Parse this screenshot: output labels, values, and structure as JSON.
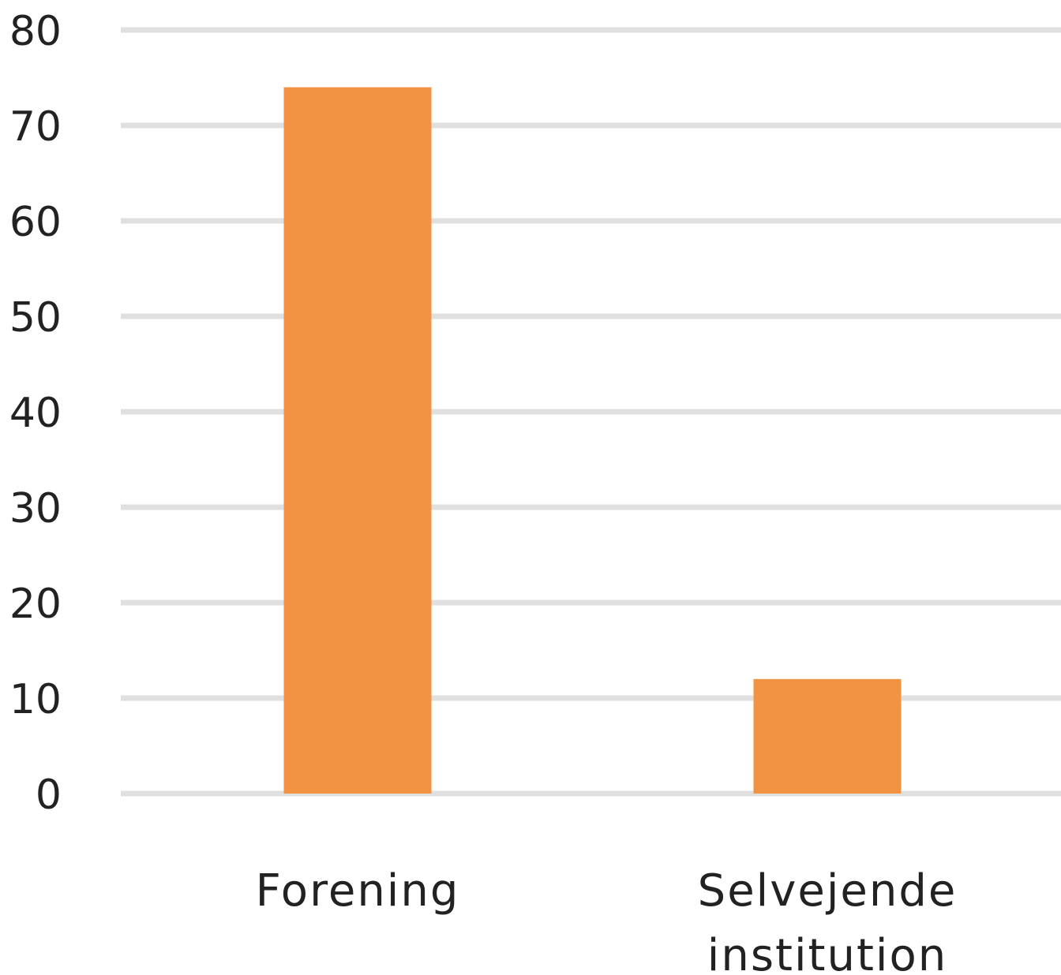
{
  "chart_data": {
    "type": "bar",
    "categories": [
      [
        "Forening"
      ],
      [
        "Selvejende",
        "institution"
      ]
    ],
    "values": [
      74,
      12
    ],
    "ylim": [
      0,
      80
    ],
    "yticks": [
      "0",
      "10",
      "20",
      "30",
      "40",
      "50",
      "60",
      "70",
      "80"
    ],
    "grid": true,
    "bar_color": "#f29343",
    "grid_color": "#e0e0e0",
    "text_color": "#222222"
  }
}
